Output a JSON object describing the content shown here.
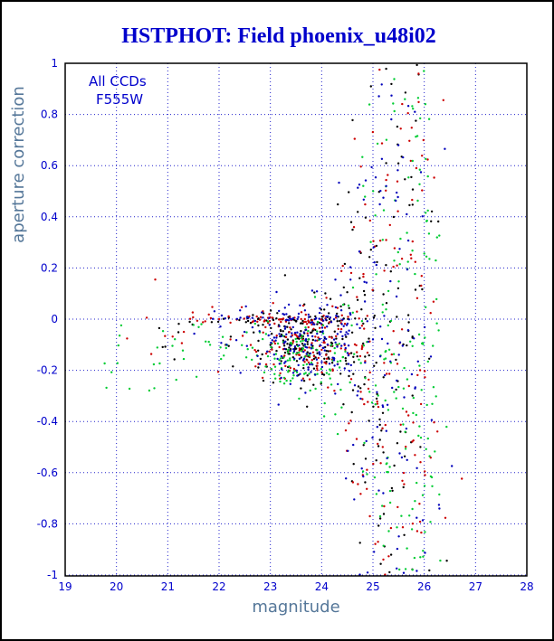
{
  "colors": {
    "background": "#ffffff",
    "title_text": "#0000cc",
    "tick_text": "#0000cc",
    "grid": "#2222cc",
    "axis_label_text": "#557799",
    "annotation_text": "#0000cc",
    "frame": "#000000"
  },
  "chart_data": {
    "type": "scatter",
    "title": "HSTPHOT: Field phoenix_u48i02",
    "xlabel": "magnitude",
    "ylabel": "aperture correction",
    "xlim": [
      19,
      28
    ],
    "ylim": [
      -1,
      1
    ],
    "xtick_values": [
      19,
      20,
      21,
      22,
      23,
      24,
      25,
      26,
      27,
      28
    ],
    "xtick_labels": [
      "19",
      "20",
      "21",
      "22",
      "23",
      "24",
      "25",
      "26",
      "27",
      "28"
    ],
    "ytick_values": [
      -1,
      -0.8,
      -0.6,
      -0.4,
      -0.2,
      0,
      0.2,
      0.4,
      0.6,
      0.8,
      1
    ],
    "ytick_labels": [
      "-1",
      "-0.8",
      "-0.6",
      "-0.4",
      "-0.2",
      "0",
      "0.2",
      "0.4",
      "0.6",
      "0.8",
      "1"
    ],
    "grid": "dotted",
    "legend": "none",
    "annotations": [
      "All CCDs",
      "F555W"
    ],
    "marker_radius": 1.2,
    "seed": 7,
    "series": [
      {
        "name": "ccd1-black",
        "color": "#000000",
        "clusters": [
          {
            "type": "gauss",
            "n": 150,
            "x_mean": 23.65,
            "x_sd": 0.42,
            "y_mean": -0.09,
            "y_sd": 0.08
          },
          {
            "type": "fan",
            "n": 150,
            "x_mean": 25.15,
            "x_sd": 0.5,
            "y_mean": -0.05,
            "y_base_sd": 0.08,
            "y_fan": 0.42,
            "x_knee": 24.0
          },
          {
            "type": "uniformx",
            "n": 12,
            "x_min": 20.8,
            "x_max": 23.0,
            "y_mean": -0.05,
            "y_sd": 0.07
          },
          {
            "type": "gauss",
            "n": 40,
            "x_mean": 23.4,
            "x_sd": 0.8,
            "y_mean": -0.004,
            "y_sd": 0.012
          }
        ]
      },
      {
        "name": "ccd2-red",
        "color": "#cc0000",
        "clusters": [
          {
            "type": "gauss",
            "n": 135,
            "x_mean": 23.6,
            "x_sd": 0.45,
            "y_mean": -0.1,
            "y_sd": 0.08
          },
          {
            "type": "fan",
            "n": 150,
            "x_mean": 25.3,
            "x_sd": 0.5,
            "y_mean": -0.05,
            "y_base_sd": 0.1,
            "y_fan": 0.45,
            "x_knee": 24.0
          },
          {
            "type": "uniformx",
            "n": 20,
            "x_min": 20.0,
            "x_max": 23.2,
            "y_mean": -0.03,
            "y_sd": 0.06
          },
          {
            "type": "gauss",
            "n": 45,
            "x_mean": 23.2,
            "x_sd": 1.0,
            "y_mean": 0.0,
            "y_sd": 0.012
          },
          {
            "type": "column",
            "n": 22,
            "x_mean": 25.9,
            "x_sd": 0.1,
            "y_min": -0.95,
            "y_max": 0.8
          }
        ]
      },
      {
        "name": "ccd3-green",
        "color": "#00cc33",
        "clusters": [
          {
            "type": "gauss",
            "n": 125,
            "x_mean": 23.55,
            "x_sd": 0.5,
            "y_mean": -0.15,
            "y_sd": 0.07
          },
          {
            "type": "fan",
            "n": 140,
            "x_mean": 25.45,
            "x_sd": 0.5,
            "y_mean": -0.1,
            "y_base_sd": 0.12,
            "y_fan": 0.48,
            "x_knee": 24.1
          },
          {
            "type": "uniformx",
            "n": 30,
            "x_min": 19.7,
            "x_max": 22.6,
            "y_mean": -0.13,
            "y_sd": 0.06
          },
          {
            "type": "column",
            "n": 55,
            "x_mean": 26.0,
            "x_sd": 0.15,
            "y_min": -1.0,
            "y_max": 1.0
          }
        ]
      },
      {
        "name": "ccd4-blue",
        "color": "#0000bb",
        "clusters": [
          {
            "type": "gauss",
            "n": 145,
            "x_mean": 23.7,
            "x_sd": 0.42,
            "y_mean": -0.08,
            "y_sd": 0.08
          },
          {
            "type": "fan",
            "n": 150,
            "x_mean": 25.2,
            "x_sd": 0.55,
            "y_mean": -0.05,
            "y_base_sd": 0.1,
            "y_fan": 0.45,
            "x_knee": 24.0
          },
          {
            "type": "uniformx",
            "n": 10,
            "x_min": 21.3,
            "x_max": 23.0,
            "y_mean": -0.05,
            "y_sd": 0.06
          },
          {
            "type": "gauss",
            "n": 35,
            "x_mean": 23.5,
            "x_sd": 0.9,
            "y_mean": 0.0,
            "y_sd": 0.013
          }
        ]
      }
    ]
  }
}
